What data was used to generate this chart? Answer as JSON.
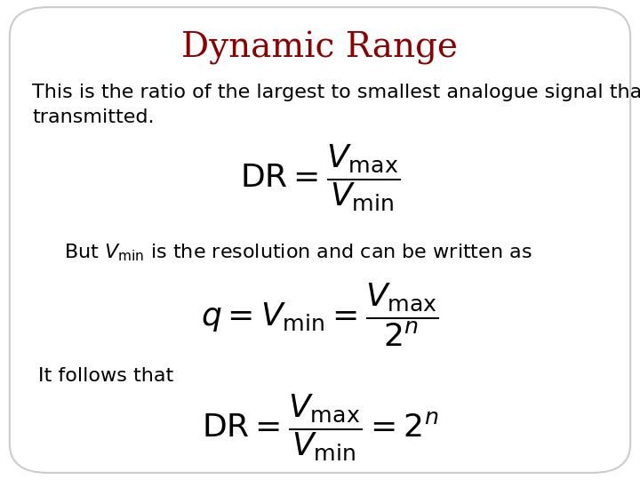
{
  "title": "Dynamic Range",
  "title_color": "#8B0000",
  "title_fontsize": 28,
  "bg_color": "#FFFFFF",
  "border_color": "#CCCCCC",
  "text_color": "#000000",
  "body_fontsize": 16,
  "math_fontsize": 20,
  "paragraph1_line1": "This is the ratio of the largest to smallest analogue signal that can be",
  "paragraph1_line2": "transmitted.",
  "eq1": "$\\mathrm{DR} = \\dfrac{V_{\\mathrm{max}}}{V_{\\mathrm{min}}}$",
  "paragraph2": "But $V_{\\mathrm{min}}$ is the resolution and can be written as",
  "eq2": "$q = V_{\\mathrm{min}} = \\dfrac{V_{\\mathrm{max}}}{2^n}$",
  "paragraph3": "It follows that",
  "eq3": "$\\mathrm{DR} = \\dfrac{V_{\\mathrm{max}}}{V_{\\mathrm{min}}} = 2^n$"
}
